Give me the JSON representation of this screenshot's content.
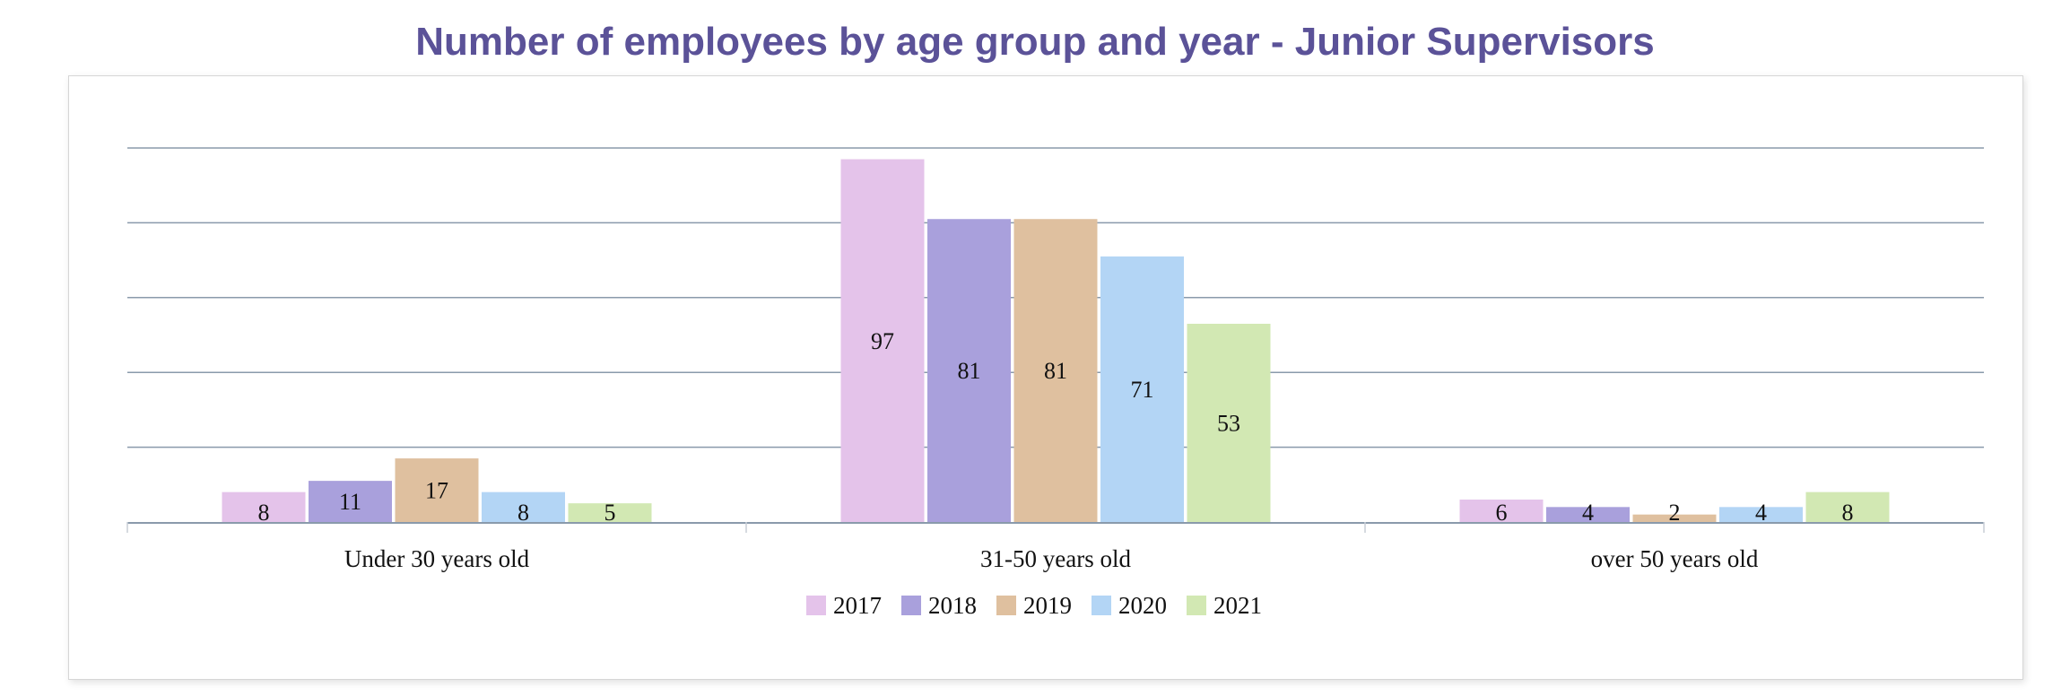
{
  "chart_data": {
    "type": "bar",
    "title": "Number of employees by age group and year - Junior Supervisors",
    "categories": [
      "Under 30 years old",
      "31-50 years old",
      "over 50 years old"
    ],
    "series": [
      {
        "name": "2017",
        "color": "#e4c3ea",
        "values": [
          8,
          97,
          6
        ]
      },
      {
        "name": "2018",
        "color": "#a9a0dc",
        "values": [
          11,
          81,
          4
        ]
      },
      {
        "name": "2019",
        "color": "#dfc09f",
        "values": [
          17,
          81,
          2
        ]
      },
      {
        "name": "2020",
        "color": "#b3d5f5",
        "values": [
          8,
          71,
          4
        ]
      },
      {
        "name": "2021",
        "color": "#d2e8b3",
        "values": [
          5,
          53,
          8
        ]
      }
    ],
    "ylim": [
      0,
      100
    ],
    "grid": true,
    "legend": "bottom",
    "colors": {
      "title": "#5b5298",
      "grid": "#8a9aab",
      "text": "#111111"
    }
  }
}
